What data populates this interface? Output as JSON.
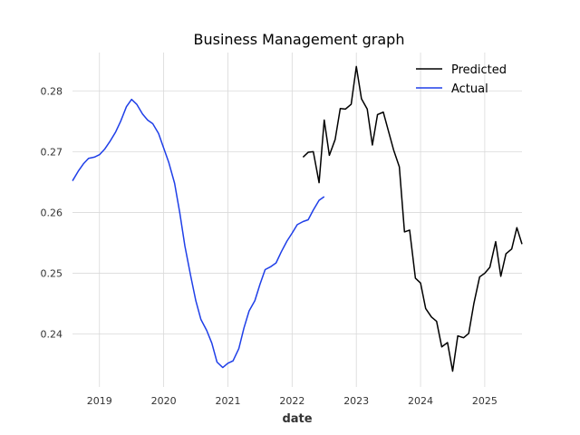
{
  "chart_data": {
    "type": "line",
    "title": "Business Management graph",
    "xlabel": "date",
    "ylabel": "",
    "xlim": [
      2018.58,
      2025.58
    ],
    "ylim": [
      0.2313,
      0.2863
    ],
    "x_ticks": [
      {
        "value": 2019,
        "label": "2019"
      },
      {
        "value": 2020,
        "label": "2020"
      },
      {
        "value": 2021,
        "label": "2021"
      },
      {
        "value": 2022,
        "label": "2022"
      },
      {
        "value": 2023,
        "label": "2023"
      },
      {
        "value": 2024,
        "label": "2024"
      },
      {
        "value": 2025,
        "label": "2025"
      }
    ],
    "y_ticks": [
      {
        "value": 0.24,
        "label": "0.24"
      },
      {
        "value": 0.25,
        "label": "0.25"
      },
      {
        "value": 0.26,
        "label": "0.26"
      },
      {
        "value": 0.27,
        "label": "0.27"
      },
      {
        "value": 0.28,
        "label": "0.28"
      }
    ],
    "grid": true,
    "legend_position": "top-right",
    "series": [
      {
        "name": "Predicted",
        "color": "#000000",
        "points": [
          [
            2022.17,
            0.2691
          ],
          [
            2022.25,
            0.2699
          ],
          [
            2022.33,
            0.27
          ],
          [
            2022.42,
            0.2649
          ],
          [
            2022.5,
            0.2752
          ],
          [
            2022.58,
            0.2694
          ],
          [
            2022.67,
            0.272
          ],
          [
            2022.75,
            0.2771
          ],
          [
            2022.83,
            0.277
          ],
          [
            2022.92,
            0.2778
          ],
          [
            2023.0,
            0.284
          ],
          [
            2023.08,
            0.2787
          ],
          [
            2023.17,
            0.277
          ],
          [
            2023.25,
            0.2711
          ],
          [
            2023.33,
            0.2761
          ],
          [
            2023.42,
            0.2765
          ],
          [
            2023.5,
            0.2734
          ],
          [
            2023.58,
            0.2703
          ],
          [
            2023.67,
            0.2675
          ],
          [
            2023.75,
            0.2568
          ],
          [
            2023.83,
            0.2571
          ],
          [
            2023.92,
            0.2492
          ],
          [
            2024.0,
            0.2484
          ],
          [
            2024.08,
            0.2442
          ],
          [
            2024.17,
            0.2428
          ],
          [
            2024.25,
            0.2421
          ],
          [
            2024.33,
            0.2379
          ],
          [
            2024.42,
            0.2386
          ],
          [
            2024.5,
            0.2339
          ],
          [
            2024.58,
            0.2397
          ],
          [
            2024.67,
            0.2394
          ],
          [
            2024.75,
            0.2401
          ],
          [
            2024.83,
            0.245
          ],
          [
            2024.92,
            0.2494
          ],
          [
            2025.0,
            0.25
          ],
          [
            2025.08,
            0.251
          ],
          [
            2025.17,
            0.2552
          ],
          [
            2025.25,
            0.2495
          ],
          [
            2025.33,
            0.2532
          ],
          [
            2025.42,
            0.254
          ],
          [
            2025.5,
            0.2575
          ],
          [
            2025.58,
            0.2548
          ]
        ]
      },
      {
        "name": "Actual",
        "color": "#1f3fe8",
        "points": [
          [
            2018.58,
            0.2652
          ],
          [
            2018.67,
            0.2668
          ],
          [
            2018.75,
            0.268
          ],
          [
            2018.83,
            0.2689
          ],
          [
            2018.92,
            0.2691
          ],
          [
            2019.0,
            0.2695
          ],
          [
            2019.08,
            0.2704
          ],
          [
            2019.17,
            0.2718
          ],
          [
            2019.25,
            0.2732
          ],
          [
            2019.33,
            0.275
          ],
          [
            2019.42,
            0.2774
          ],
          [
            2019.5,
            0.2786
          ],
          [
            2019.58,
            0.2778
          ],
          [
            2019.67,
            0.2762
          ],
          [
            2019.75,
            0.2752
          ],
          [
            2019.83,
            0.2746
          ],
          [
            2019.92,
            0.273
          ],
          [
            2020.0,
            0.2706
          ],
          [
            2020.08,
            0.2682
          ],
          [
            2020.17,
            0.2648
          ],
          [
            2020.25,
            0.26
          ],
          [
            2020.33,
            0.2545
          ],
          [
            2020.42,
            0.2496
          ],
          [
            2020.5,
            0.2455
          ],
          [
            2020.58,
            0.2424
          ],
          [
            2020.67,
            0.2406
          ],
          [
            2020.75,
            0.2385
          ],
          [
            2020.83,
            0.2354
          ],
          [
            2020.92,
            0.2345
          ],
          [
            2021.0,
            0.2352
          ],
          [
            2021.08,
            0.2356
          ],
          [
            2021.17,
            0.2376
          ],
          [
            2021.25,
            0.241
          ],
          [
            2021.33,
            0.2438
          ],
          [
            2021.42,
            0.2455
          ],
          [
            2021.5,
            0.2482
          ],
          [
            2021.58,
            0.2506
          ],
          [
            2021.67,
            0.2511
          ],
          [
            2021.75,
            0.2517
          ],
          [
            2021.83,
            0.2535
          ],
          [
            2021.92,
            0.2553
          ],
          [
            2022.0,
            0.2566
          ],
          [
            2022.08,
            0.258
          ],
          [
            2022.17,
            0.2585
          ],
          [
            2022.25,
            0.2588
          ],
          [
            2022.33,
            0.2604
          ],
          [
            2022.42,
            0.262
          ],
          [
            2022.5,
            0.2626
          ]
        ]
      }
    ]
  }
}
